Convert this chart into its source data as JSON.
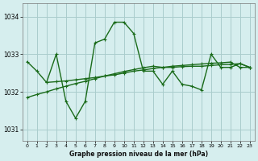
{
  "title": "Graphe pression niveau de la mer (hPa)",
  "bg_color": "#d6eeee",
  "grid_color": "#aacccc",
  "line_color": "#1a6b1a",
  "ylim": [
    1030.7,
    1034.35
  ],
  "xlim": [
    -0.5,
    23.5
  ],
  "yticks": [
    1031,
    1032,
    1033,
    1034
  ],
  "xticks": [
    0,
    1,
    2,
    3,
    4,
    5,
    6,
    7,
    8,
    9,
    10,
    11,
    12,
    13,
    14,
    15,
    16,
    17,
    18,
    19,
    20,
    21,
    22,
    23
  ],
  "series": [
    {
      "x": [
        0,
        1,
        2,
        3,
        4,
        5,
        6,
        7,
        8,
        9,
        10,
        11,
        12,
        13,
        14,
        15,
        16,
        17,
        18,
        19,
        20,
        21,
        22,
        23
      ],
      "y": [
        1032.8,
        1032.55,
        1032.25,
        1033.0,
        1031.75,
        1031.3,
        1031.75,
        1033.3,
        1033.4,
        1033.85,
        1033.85,
        1033.55,
        1032.55,
        1032.55,
        1032.2,
        1032.55,
        1032.2,
        1032.15,
        1032.05,
        1033.0,
        1032.65,
        1032.65,
        1032.75,
        1032.65
      ]
    },
    {
      "x": [
        2,
        3,
        4,
        5,
        6,
        7,
        8,
        9,
        10,
        11,
        12,
        13,
        14,
        15,
        16,
        17,
        18,
        19,
        20,
        21,
        22,
        23
      ],
      "y": [
        1032.25,
        1032.27,
        1032.29,
        1032.32,
        1032.35,
        1032.38,
        1032.42,
        1032.45,
        1032.5,
        1032.55,
        1032.58,
        1032.62,
        1032.65,
        1032.65,
        1032.67,
        1032.68,
        1032.68,
        1032.7,
        1032.72,
        1032.73,
        1032.75,
        1032.65
      ]
    },
    {
      "x": [
        0,
        1,
        2,
        3,
        4,
        5,
        6,
        7,
        8,
        9,
        10,
        11,
        12,
        13,
        14,
        15,
        16,
        17,
        18,
        19,
        20,
        21,
        22,
        23
      ],
      "y": [
        1031.85,
        1031.93,
        1032.0,
        1032.08,
        1032.15,
        1032.22,
        1032.28,
        1032.35,
        1032.42,
        1032.48,
        1032.54,
        1032.59,
        1032.64,
        1032.68,
        1032.65,
        1032.68,
        1032.7,
        1032.72,
        1032.74,
        1032.76,
        1032.77,
        1032.79,
        1032.65,
        1032.65
      ]
    }
  ]
}
